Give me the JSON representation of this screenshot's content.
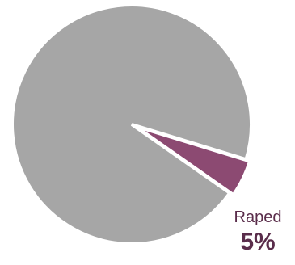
{
  "chart_data": {
    "type": "pie",
    "slices": [
      {
        "name": "",
        "value": 95,
        "color": "#a6a6a6"
      },
      {
        "name": "Raped",
        "value": 5,
        "color": "#8c4a72",
        "label_value": "5%"
      }
    ],
    "edge_color": "#ffffff"
  }
}
